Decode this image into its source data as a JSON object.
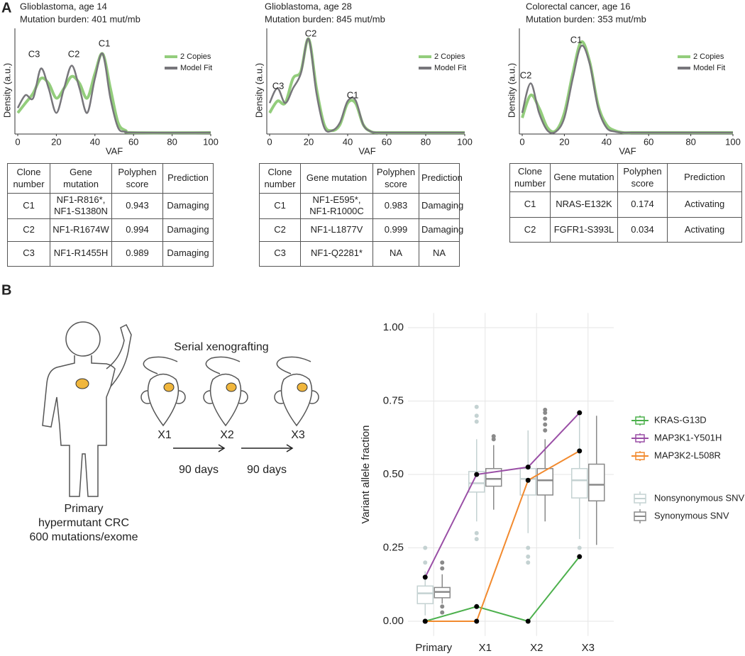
{
  "panel_labels": [
    "A",
    "B"
  ],
  "chart_data": [
    {
      "type": "density",
      "title": "Glioblastoma, age 14",
      "subtitle": "Mutation burden: 401 mut/mb",
      "x_label": "VAF",
      "y_label": "Density (a.u.)",
      "annotations": [
        "C3",
        "C2",
        "C1"
      ],
      "x": [
        0,
        4,
        8,
        12,
        16,
        20,
        24,
        28,
        32,
        36,
        40,
        44,
        48,
        52,
        56,
        60,
        100
      ],
      "xlim": [
        0,
        100
      ],
      "xticks": [
        0,
        20,
        40,
        60,
        80,
        100
      ],
      "ylim": [
        0,
        1
      ],
      "series": [
        {
          "name": "2 Copies",
          "color": "#93cd7c",
          "values": [
            0.2,
            0.3,
            0.4,
            0.55,
            0.5,
            0.35,
            0.45,
            0.57,
            0.5,
            0.35,
            0.6,
            0.8,
            0.45,
            0.1,
            0.02,
            0,
            0
          ]
        },
        {
          "name": "Model Fit",
          "color": "#77767b",
          "values": [
            0.25,
            0.38,
            0.35,
            0.65,
            0.45,
            0.2,
            0.45,
            0.68,
            0.45,
            0.2,
            0.55,
            0.8,
            0.35,
            0.05,
            0.01,
            0,
            0
          ]
        }
      ]
    },
    {
      "type": "density",
      "title": "Glioblastoma, age 28",
      "subtitle": "Mutation burden: 845 mut/mb",
      "x_label": "VAF",
      "y_label": "Density (a.u.)",
      "annotations": [
        "C3",
        "C2",
        "C1"
      ],
      "x": [
        0,
        4,
        8,
        12,
        16,
        20,
        24,
        28,
        32,
        36,
        40,
        44,
        48,
        52,
        56,
        60,
        100
      ],
      "xlim": [
        0,
        100
      ],
      "xticks": [
        0,
        20,
        40,
        60,
        80,
        100
      ],
      "ylim": [
        0,
        1
      ],
      "series": [
        {
          "name": "2 Copies",
          "color": "#93cd7c",
          "values": [
            0.2,
            0.32,
            0.3,
            0.55,
            0.62,
            0.95,
            0.45,
            0.08,
            0.02,
            0.08,
            0.3,
            0.3,
            0.08,
            0.01,
            0,
            0,
            0
          ]
        },
        {
          "name": "Model Fit",
          "color": "#77767b",
          "values": [
            0.3,
            0.45,
            0.3,
            0.45,
            0.6,
            0.95,
            0.4,
            0.05,
            0.02,
            0.1,
            0.32,
            0.33,
            0.08,
            0.01,
            0,
            0,
            0
          ]
        }
      ]
    },
    {
      "type": "density",
      "title": "Colorectal cancer, age 16",
      "subtitle": "Mutation burden: 353 mut/mb",
      "x_label": "VAF",
      "y_label": "Density (a.u.)",
      "annotations": [
        "C2",
        "C1"
      ],
      "x": [
        0,
        4,
        8,
        12,
        16,
        20,
        24,
        28,
        32,
        36,
        40,
        44,
        48,
        52,
        56,
        60,
        100
      ],
      "xlim": [
        0,
        100
      ],
      "xticks": [
        0,
        20,
        40,
        60,
        80,
        100
      ],
      "ylim": [
        0,
        1
      ],
      "series": [
        {
          "name": "2 Copies",
          "color": "#93cd7c",
          "values": [
            0.15,
            0.38,
            0.25,
            0.05,
            0.02,
            0.2,
            0.6,
            0.92,
            0.72,
            0.28,
            0.08,
            0.02,
            0,
            0,
            0,
            0,
            0
          ]
        },
        {
          "name": "Model Fit",
          "color": "#77767b",
          "values": [
            0.2,
            0.5,
            0.2,
            0.02,
            0.01,
            0.15,
            0.55,
            0.88,
            0.7,
            0.25,
            0.05,
            0.01,
            0,
            0,
            0,
            0,
            0
          ]
        }
      ]
    },
    {
      "type": "box",
      "y_label": "Variant allele fraction",
      "categories": [
        "Primary",
        "X1",
        "X2",
        "X3"
      ],
      "ylim": [
        -0.05,
        1.05
      ],
      "yticks": [
        {
          "value": 0,
          "label": "0.00"
        },
        {
          "value": 0.25,
          "label": "0.25"
        },
        {
          "value": 0.5,
          "label": "0.50"
        },
        {
          "value": 0.75,
          "label": "0.75"
        },
        {
          "value": 1,
          "label": "1.00"
        }
      ],
      "grid": true,
      "box_series": [
        {
          "name": "Nonsynonymous SNV",
          "color": "#c4d2d2",
          "boxes": [
            {
              "min": 0.02,
              "q1": 0.06,
              "median": 0.095,
              "q3": 0.12,
              "max": 0.17,
              "outliers": [
                0.2,
                0.25
              ]
            },
            {
              "min": 0.34,
              "q1": 0.44,
              "median": 0.47,
              "q3": 0.51,
              "max": 0.62,
              "outliers": [
                0.28,
                0.3,
                0.68,
                0.7,
                0.73
              ]
            },
            {
              "min": 0.3,
              "q1": 0.43,
              "median": 0.485,
              "q3": 0.52,
              "max": 0.65,
              "outliers": [
                0.2,
                0.22,
                0.25
              ]
            },
            {
              "min": 0.28,
              "q1": 0.42,
              "median": 0.48,
              "q3": 0.52,
              "max": 0.7,
              "outliers": [
                0.25
              ]
            }
          ]
        },
        {
          "name": "Synonymous SNV",
          "color": "#8a8a8a",
          "boxes": [
            {
              "min": 0.06,
              "q1": 0.08,
              "median": 0.1,
              "q3": 0.115,
              "max": 0.16,
              "outliers": [
                0.03,
                0.05,
                0.18,
                0.2
              ]
            },
            {
              "min": 0.38,
              "q1": 0.46,
              "median": 0.485,
              "q3": 0.52,
              "max": 0.6,
              "outliers": [
                0.62,
                0.63
              ]
            },
            {
              "min": 0.34,
              "q1": 0.43,
              "median": 0.48,
              "q3": 0.52,
              "max": 0.62,
              "outliers": [
                0.65,
                0.67,
                0.69,
                0.71,
                0.72
              ]
            },
            {
              "min": 0.26,
              "q1": 0.41,
              "median": 0.465,
              "q3": 0.535,
              "max": 0.7,
              "outliers": []
            }
          ]
        }
      ],
      "series": [
        {
          "name": "KRAS-G13D",
          "color": "#4cb04c",
          "values": [
            0,
            0.05,
            0,
            0.22
          ]
        },
        {
          "name": "MAP3K1-Y501H",
          "color": "#9a4fa6",
          "values": [
            0.15,
            0.5,
            0.525,
            0.71
          ]
        },
        {
          "name": "MAP3K2-L508R",
          "color": "#f28a2e",
          "values": [
            0,
            0,
            0.48,
            0.58
          ]
        }
      ]
    }
  ],
  "tables": [
    {
      "header": [
        "Clone number",
        "Gene mutation",
        "Polyphen score",
        "Prediction"
      ],
      "rows": [
        [
          "C1",
          "NF1-R816*, NF1-S1380N",
          "0.943",
          "Damaging"
        ],
        [
          "C2",
          "NF1-R1674W",
          "0.994",
          "Damaging"
        ],
        [
          "C3",
          "NF1-R1455H",
          "0.989",
          "Damaging"
        ]
      ]
    },
    {
      "header": [
        "Clone number",
        "Gene mutation",
        "Polyphen score",
        "Prediction"
      ],
      "rows": [
        [
          "C1",
          "NF1-E595*, NF1-R1000C",
          "0.983",
          "Damaging"
        ],
        [
          "C2",
          "NF1-L1877V",
          "0.999",
          "Damaging"
        ],
        [
          "C3",
          "NF1-Q2281*",
          "NA",
          "NA"
        ]
      ]
    },
    {
      "header": [
        "Clone number",
        "Gene mutation",
        "Polyphen score",
        "Prediction"
      ],
      "rows": [
        [
          "C1",
          "NRAS-E132K",
          "0.174",
          "Activating"
        ],
        [
          "C2",
          "FGFR1-S393L",
          "0.034",
          "Activating"
        ]
      ]
    }
  ],
  "illustration": {
    "heading": "Serial xenografting",
    "xenografts": [
      "X1",
      "X2",
      "X3"
    ],
    "intervals": [
      "90 days",
      "90 days"
    ],
    "primary": [
      "Primary",
      "hypermutant CRC",
      "600 mutations/exome"
    ]
  }
}
